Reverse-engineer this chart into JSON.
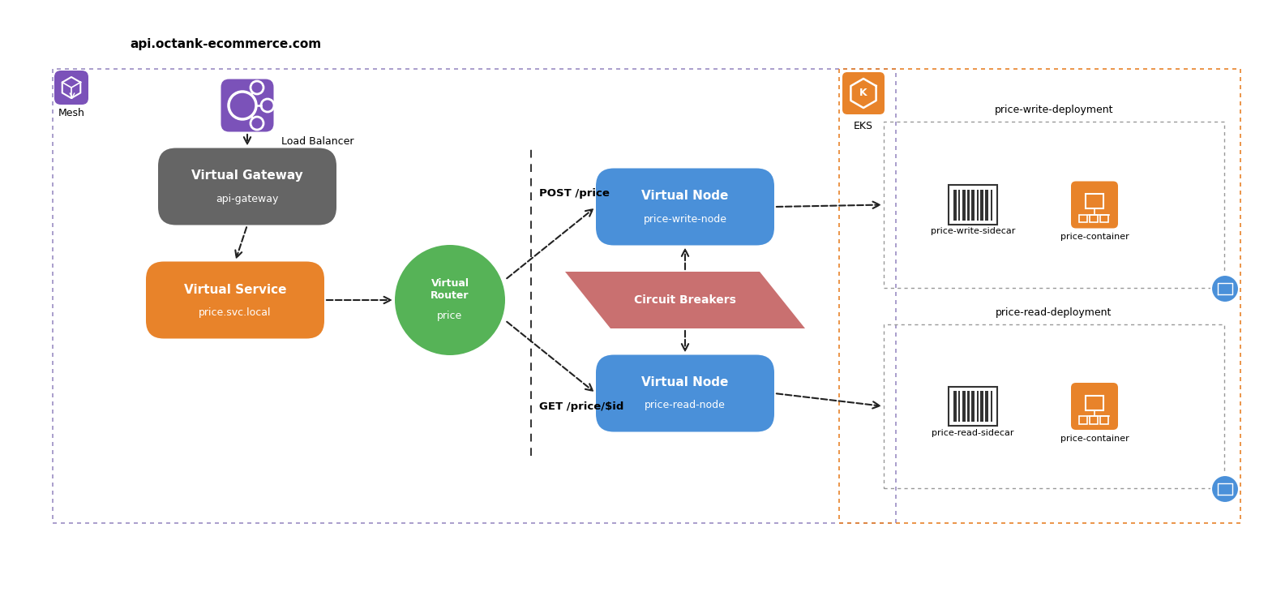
{
  "bg_color": "#ffffff",
  "title_text": "api.octank-ecommerce.com",
  "load_balancer_label": "Load Balancer",
  "mesh_label": "Mesh",
  "eks_label": "EKS",
  "virtual_gateway_title": "Virtual Gateway",
  "virtual_gateway_sub": "api-gateway",
  "virtual_service_title": "Virtual Service",
  "virtual_service_sub": "price.svc.local",
  "virtual_router_title": "Virtual\nRouter",
  "virtual_router_sub": "price",
  "virtual_node_write_title": "Virtual Node",
  "virtual_node_write_sub": "price-write-node",
  "virtual_node_read_title": "Virtual Node",
  "virtual_node_read_sub": "price-read-node",
  "circuit_breaker_label": "Circuit Breakers",
  "post_label": "POST /price",
  "get_label": "GET /price/$id",
  "write_deployment_label": "price-write-deployment",
  "write_sidecar_label": "price-write-sidecar",
  "price_container_label": "price-container",
  "read_deployment_label": "price-read-deployment",
  "read_sidecar_label": "price-read-sidecar",
  "price_container_label2": "price-container",
  "color_purple_icon_bg": "#7B52B9",
  "color_gray_box": "#656565",
  "color_orange": "#E8832A",
  "color_green": "#56B357",
  "color_blue_node": "#4A90D9",
  "color_red_cb": "#C97070",
  "color_mesh_border": "#9B8EC4",
  "color_eks_border": "#E8832A",
  "color_deploy_border": "#999999",
  "color_blue_cube": "#4A90D9"
}
